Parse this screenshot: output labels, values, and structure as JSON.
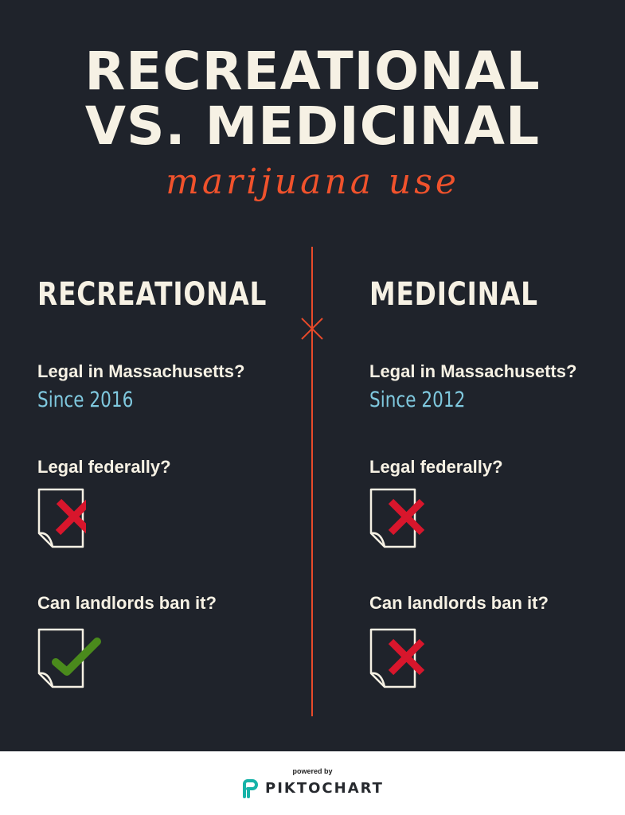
{
  "header": {
    "title_line1": "RECREATIONAL",
    "title_line2": "VS. MEDICINAL",
    "subtitle": "marijuana use"
  },
  "columns": [
    {
      "heading": "RECREATIONAL",
      "questions": {
        "q1": "Legal in Massachusetts?",
        "a1": "Since 2016",
        "q2": "Legal federally?",
        "a2_icon": "red-x-icon",
        "q3": "Can landlords ban it?",
        "a3_icon": "green-check-icon"
      }
    },
    {
      "heading": "MEDICINAL",
      "questions": {
        "q1": "Legal in Massachusetts?",
        "a1": "Since 2012",
        "q2": "Legal federally?",
        "a2_icon": "red-x-icon",
        "q3": "Can landlords ban it?",
        "a3_icon": "red-x-icon"
      }
    }
  ],
  "footer": {
    "powered_by": "powered by",
    "brand": "PIKTOCHART",
    "brand_icon": "piktochart-logo-icon"
  },
  "colors": {
    "background": "#1f232b",
    "title": "#f6f1e4",
    "accent_orange": "#f0522c",
    "answer_blue": "#7fc8de",
    "cross_red": "#d8162c",
    "check_green": "#4a8a1c",
    "brand_teal": "#17b3a8"
  }
}
